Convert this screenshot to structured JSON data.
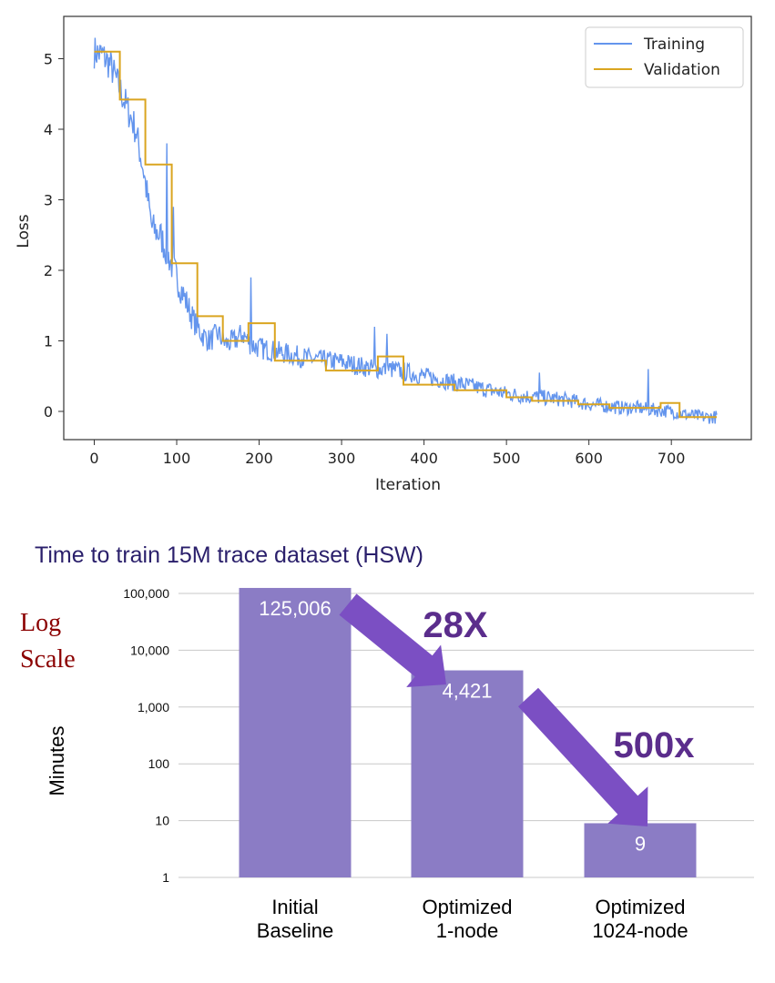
{
  "chart_data": [
    {
      "type": "line",
      "title": "",
      "xlabel": "Iteration",
      "ylabel": "Loss",
      "xlim": [
        -37,
        797
      ],
      "ylim": [
        -0.4,
        5.6
      ],
      "x_ticks": [
        0,
        100,
        200,
        300,
        400,
        500,
        600,
        700
      ],
      "y_ticks": [
        0,
        1,
        2,
        3,
        4,
        5
      ],
      "grid": false,
      "legend_position": "top-right",
      "colors": {
        "Training": "#6495ed",
        "Validation": "#daa520"
      },
      "series": [
        {
          "name": "Training",
          "style": "noisy",
          "x": [
            0,
            10,
            20,
            30,
            40,
            50,
            60,
            70,
            80,
            90,
            100,
            110,
            120,
            130,
            140,
            150,
            160,
            170,
            180,
            190,
            200,
            220,
            240,
            260,
            280,
            300,
            320,
            340,
            360,
            380,
            400,
            420,
            440,
            460,
            480,
            500,
            520,
            540,
            560,
            580,
            600,
            620,
            640,
            660,
            680,
            700,
            720,
            740,
            755
          ],
          "y": [
            5.1,
            5.05,
            4.9,
            4.6,
            4.3,
            4.0,
            3.4,
            2.6,
            2.5,
            2.2,
            1.9,
            1.6,
            1.3,
            1.1,
            1.0,
            1.1,
            0.95,
            1.0,
            1.1,
            0.95,
            0.9,
            0.85,
            0.8,
            0.75,
            0.72,
            0.7,
            0.65,
            0.6,
            0.6,
            0.55,
            0.5,
            0.45,
            0.4,
            0.35,
            0.3,
            0.25,
            0.22,
            0.2,
            0.18,
            0.15,
            0.1,
            0.08,
            0.05,
            0.05,
            0.02,
            0.0,
            -0.05,
            -0.08,
            -0.08
          ],
          "spikes": [
            [
              88,
              3.8
            ],
            [
              96,
              2.9
            ],
            [
              190,
              1.9
            ],
            [
              340,
              1.2
            ],
            [
              355,
              1.1
            ],
            [
              540,
              0.55
            ],
            [
              672,
              0.6
            ]
          ]
        },
        {
          "name": "Validation",
          "style": "step",
          "x": [
            0,
            31,
            31,
            62,
            62,
            94,
            94,
            125,
            125,
            156,
            156,
            187,
            187,
            219,
            219,
            281,
            281,
            344,
            344,
            375,
            375,
            437,
            437,
            500,
            500,
            531,
            531,
            587,
            587,
            625,
            625,
            687,
            687,
            710,
            710,
            755
          ],
          "y": [
            5.1,
            5.1,
            4.42,
            4.42,
            3.5,
            3.5,
            2.1,
            2.1,
            1.35,
            1.35,
            1.0,
            1.0,
            1.25,
            1.25,
            0.72,
            0.72,
            0.58,
            0.58,
            0.78,
            0.78,
            0.38,
            0.38,
            0.3,
            0.3,
            0.2,
            0.2,
            0.15,
            0.15,
            0.1,
            0.1,
            0.05,
            0.05,
            0.12,
            0.12,
            -0.08,
            -0.08
          ]
        }
      ]
    },
    {
      "type": "bar",
      "title": "Time to train 15M trace dataset (HSW)",
      "xlabel": "",
      "ylabel": "Minutes",
      "scale": "log",
      "ylim": [
        1,
        100000
      ],
      "y_ticks": [
        "1",
        "10",
        "100",
        "1,000",
        "10,000",
        "100,000"
      ],
      "grid": true,
      "bar_color": "#8b7cc5",
      "arrow_color": "#7b4fc3",
      "categories": [
        [
          "Initial",
          "Baseline"
        ],
        [
          "Optimized",
          "1-node"
        ],
        [
          "Optimized",
          "1024-node"
        ]
      ],
      "values": [
        125006,
        4421,
        9
      ],
      "value_labels": [
        "125,006",
        "4,421",
        "9"
      ],
      "annotations": [
        {
          "text": "28X",
          "from": 0,
          "to": 1
        },
        {
          "text": "500x",
          "from": 1,
          "to": 2
        }
      ],
      "side_note": [
        "Log",
        "Scale"
      ]
    }
  ]
}
